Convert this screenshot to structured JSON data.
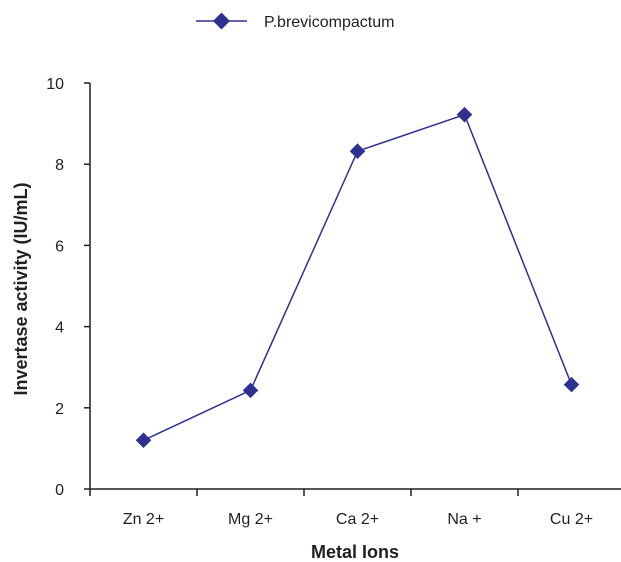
{
  "chart_data": {
    "type": "line",
    "categories": [
      "Zn 2+",
      "Mg 2+",
      "Ca 2+",
      "Na +",
      "Cu 2+"
    ],
    "series": [
      {
        "name": "P.brevicompactum",
        "values": [
          1.2,
          2.43,
          8.32,
          9.22,
          2.57
        ]
      }
    ],
    "xlabel": "Metal Ions",
    "ylabel": "Invertase activity (IU/mL)",
    "ylim": [
      0,
      10
    ],
    "yticks": [
      0,
      2,
      4,
      6,
      8,
      10
    ],
    "grid": false,
    "legend": "top-center",
    "colors": {
      "series": "#2e3192",
      "axis": "#231f20",
      "text": "#231f20"
    }
  }
}
